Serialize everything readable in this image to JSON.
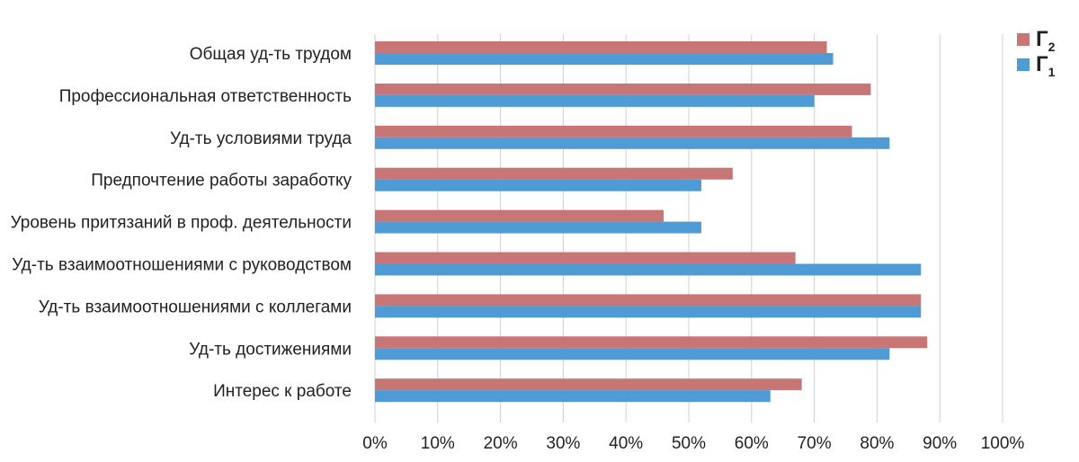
{
  "chart_data": {
    "type": "bar",
    "orientation": "horizontal",
    "categories": [
      "Общая уд-ть трудом",
      "Профессиональная ответственность",
      "Уд-ть условиями труда",
      "Предпочтение работы заработку",
      "Уровень притязаний в проф. деятельности",
      "Уд-ть взаимоотношениями с руководством",
      "Уд-ть взаимоотношениями с коллегами",
      "Уд-ть достижениями",
      "Интерес к работе"
    ],
    "series": [
      {
        "name": "Г2",
        "label_main": "Г",
        "label_sub": "2",
        "color": "#c87575",
        "values": [
          72,
          79,
          76,
          57,
          46,
          67,
          87,
          88,
          68
        ]
      },
      {
        "name": "Г1",
        "label_main": "Г",
        "label_sub": "1",
        "color": "#4f9bd6",
        "values": [
          73,
          70,
          82,
          52,
          52,
          87,
          87,
          82,
          63
        ]
      }
    ],
    "x_ticks": [
      "0%",
      "10%",
      "20%",
      "30%",
      "40%",
      "50%",
      "60%",
      "70%",
      "80%",
      "90%",
      "100%"
    ],
    "xlim": [
      0,
      100
    ],
    "grid": true,
    "legend_position": "top-right",
    "title": "",
    "xlabel": "",
    "ylabel": ""
  }
}
